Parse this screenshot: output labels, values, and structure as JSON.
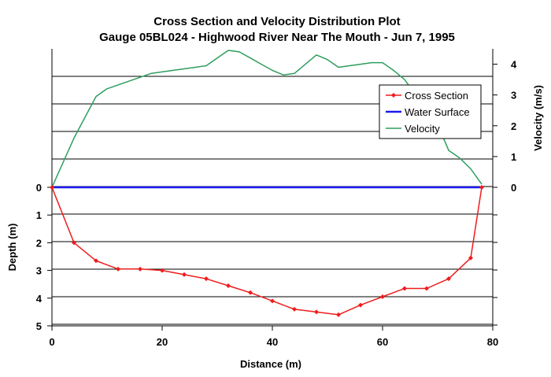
{
  "chart_data": {
    "type": "line",
    "title": "Cross Section and Velocity Distribution Plot",
    "subtitle": "Gauge 05BL024 - Highwood River Near The Mouth - Jun 7, 1995",
    "xlabel": "Distance (m)",
    "ylabel_left": "Depth (m)",
    "ylabel_right": "Velocity (m/s)",
    "xlim": [
      0,
      80
    ],
    "x_ticks": [
      "0",
      "20",
      "40",
      "60",
      "80"
    ],
    "depth_ylim": [
      0,
      5
    ],
    "depth_ticks": [
      "0",
      "1",
      "2",
      "3",
      "4",
      "5"
    ],
    "velocity_ylim": [
      0,
      4.5
    ],
    "velocity_ticks": [
      "0",
      "1",
      "2",
      "3",
      "4"
    ],
    "grid": true,
    "legend_position": "right",
    "series": [
      {
        "name": "Cross Section",
        "axis": "depth",
        "color": "#ee1c1c",
        "marker": "diamond",
        "x": [
          0,
          4,
          8,
          12,
          16,
          20,
          24,
          28,
          32,
          36,
          40,
          44,
          48,
          52,
          56,
          60,
          64,
          68,
          72,
          76,
          78
        ],
        "y": [
          0,
          2.0,
          2.65,
          2.95,
          2.95,
          3.0,
          3.15,
          3.3,
          3.55,
          3.8,
          4.1,
          4.4,
          4.5,
          4.6,
          4.25,
          3.95,
          3.65,
          3.65,
          3.3,
          2.55,
          0
        ]
      },
      {
        "name": "Water Surface",
        "axis": "depth",
        "color": "#1a1aee",
        "x": [
          0,
          78
        ],
        "y": [
          0,
          0
        ]
      },
      {
        "name": "Velocity",
        "axis": "velocity",
        "color": "#2e9e5e",
        "x": [
          0,
          4,
          8,
          10,
          14,
          18,
          22,
          26,
          28,
          30,
          32,
          34,
          36,
          38,
          40,
          42,
          44,
          46,
          48,
          50,
          52,
          54,
          56,
          58,
          60,
          62,
          64,
          66,
          68,
          70,
          72,
          74,
          76,
          78
        ],
        "y": [
          0,
          1.6,
          2.95,
          3.2,
          3.45,
          3.7,
          3.8,
          3.9,
          3.95,
          4.2,
          4.45,
          4.4,
          4.2,
          4.0,
          3.8,
          3.65,
          3.7,
          4.0,
          4.3,
          4.15,
          3.9,
          3.95,
          4.0,
          4.05,
          4.05,
          3.8,
          3.5,
          3.0,
          2.5,
          2.05,
          1.2,
          0.95,
          0.6,
          0.1
        ]
      }
    ]
  }
}
